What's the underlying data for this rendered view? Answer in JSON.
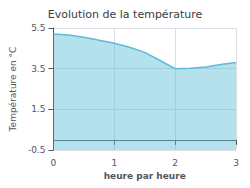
{
  "chart_data": {
    "type": "line",
    "title": "Evolution de la température",
    "xlabel": "heure par heure",
    "ylabel": "Température en °C",
    "x": [
      0,
      0.25,
      0.5,
      0.75,
      1.0,
      1.25,
      1.5,
      1.75,
      2.0,
      2.25,
      2.5,
      2.75,
      3.0
    ],
    "values": [
      5.2,
      5.15,
      5.05,
      4.9,
      4.75,
      4.55,
      4.3,
      3.9,
      3.5,
      3.52,
      3.58,
      3.7,
      3.8
    ],
    "color": "#5bbcd6",
    "xlim": [
      0,
      3
    ],
    "ylim": [
      -0.5,
      5.5
    ],
    "xticks": [
      0,
      1,
      2,
      3
    ],
    "yticks": [
      -0.5,
      1.5,
      3.5,
      5.5
    ],
    "grid": true
  }
}
